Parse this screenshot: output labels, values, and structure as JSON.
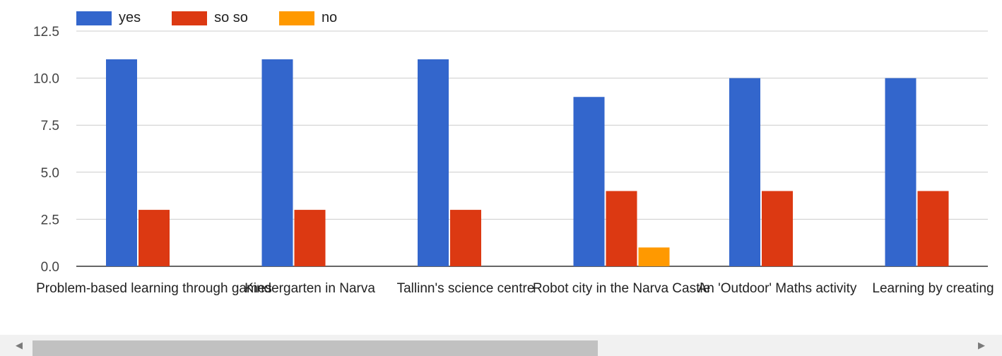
{
  "chart_data": {
    "type": "bar",
    "categories": [
      "Problem-based learning through games",
      "Kindergarten in Narva",
      "Tallinn's science centre",
      "Robot city in the Narva Castle",
      "An 'Outdoor' Maths activity",
      "Learning by creating"
    ],
    "series": [
      {
        "name": "yes",
        "values": [
          11,
          11,
          11,
          9,
          10,
          10
        ],
        "color": "#3366cc"
      },
      {
        "name": "so so",
        "values": [
          3,
          3,
          3,
          4,
          4,
          4
        ],
        "color": "#dc3912"
      },
      {
        "name": "no",
        "values": [
          0,
          0,
          0,
          1,
          0,
          0
        ],
        "color": "#ff9900"
      }
    ],
    "yticks": [
      "0.0",
      "2.5",
      "5.0",
      "7.5",
      "10.0",
      "12.5"
    ],
    "ylim": [
      0,
      12.5
    ],
    "grid": true,
    "legend": "top-left",
    "title": "",
    "xlabel": "",
    "ylabel": ""
  }
}
